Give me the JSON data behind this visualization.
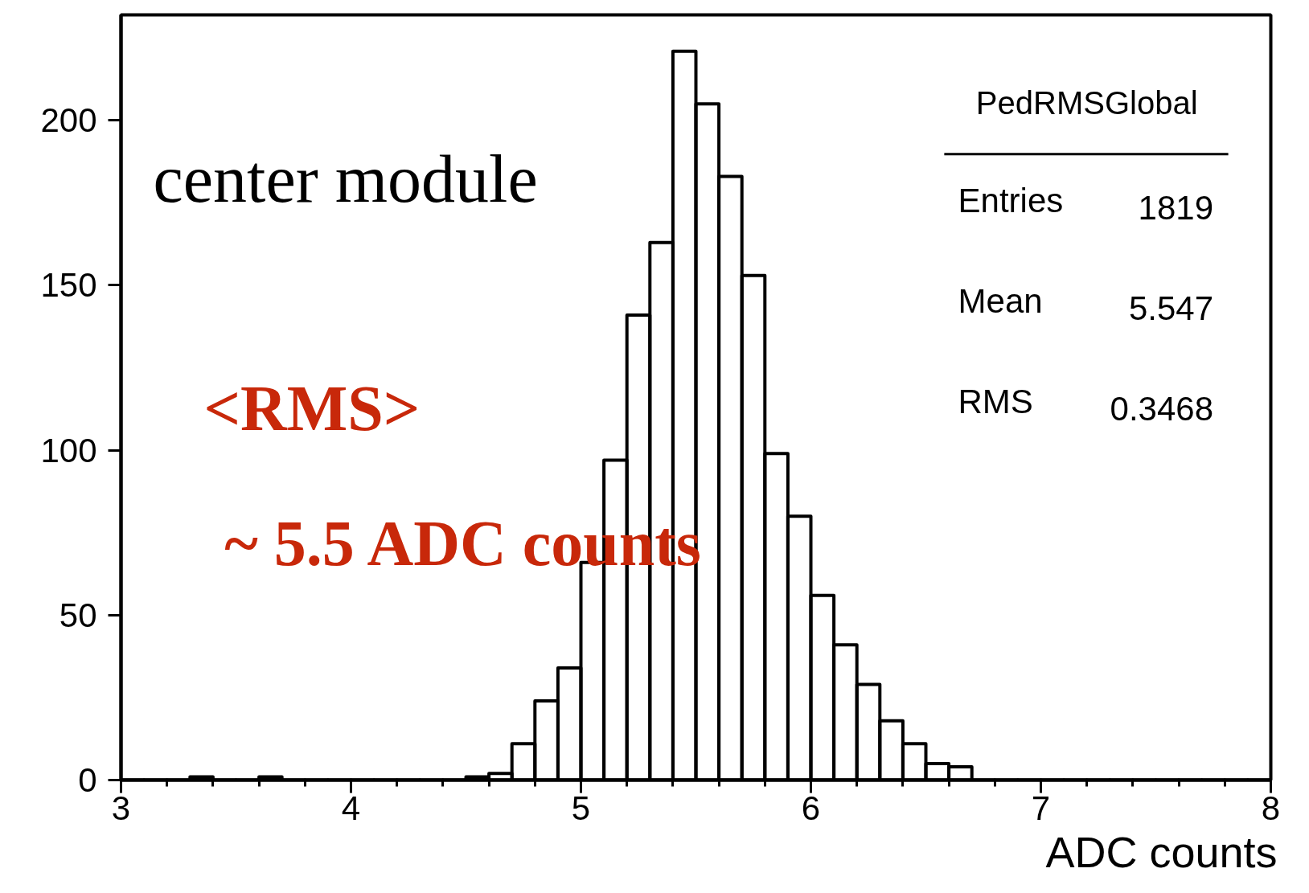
{
  "chart_data": {
    "type": "histogram",
    "xlabel": "ADC counts",
    "bins": [
      3.0,
      3.1,
      3.2,
      3.3,
      3.4,
      3.5,
      3.6,
      3.7,
      3.8,
      3.9,
      4.0,
      4.1,
      4.2,
      4.3,
      4.4,
      4.5,
      4.6,
      4.7,
      4.8,
      4.9,
      5.0,
      5.1,
      5.2,
      5.3,
      5.4,
      5.5,
      5.6,
      5.7,
      5.8,
      5.9,
      6.0,
      6.1,
      6.2,
      6.3,
      6.4,
      6.5,
      6.6,
      6.7,
      6.8,
      6.9,
      7.0,
      7.1,
      7.2,
      7.3,
      7.4,
      7.5,
      7.6,
      7.7,
      7.8,
      7.9,
      8.0
    ],
    "values": [
      0,
      0,
      0,
      1,
      0,
      0,
      1,
      0,
      0,
      0,
      0,
      0,
      0,
      0,
      0,
      1,
      2,
      11,
      24,
      34,
      66,
      97,
      141,
      163,
      221,
      205,
      183,
      153,
      99,
      80,
      56,
      41,
      29,
      18,
      11,
      5,
      4,
      0,
      0,
      0,
      0,
      0,
      0,
      0,
      0,
      0,
      0,
      0,
      0,
      0
    ],
    "color": "#000000",
    "xlim": [
      3,
      8
    ],
    "ylim": [
      0,
      232
    ],
    "xticks": [
      3,
      4,
      5,
      6,
      7,
      8
    ],
    "yticks": [
      0,
      50,
      100,
      150,
      200
    ],
    "grid": false,
    "annotations": [
      "center module",
      "<RMS>",
      "~ 5.5 ADC counts",
      "PedRMSGlobal",
      "Entries",
      "1819",
      "Mean",
      "5.547",
      "RMS",
      "0.3468"
    ]
  }
}
